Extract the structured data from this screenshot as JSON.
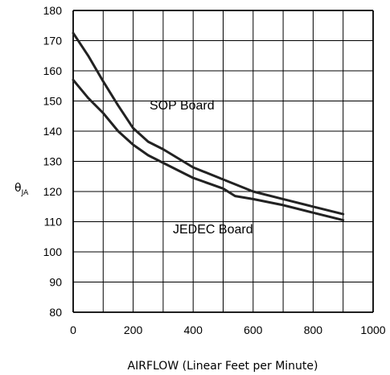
{
  "chart_data": {
    "type": "line",
    "title": "",
    "xlabel": "AIRFLOW (Linear Feet per Minute)",
    "ylabel_main": "θ",
    "ylabel_sub": "JA",
    "xlim": [
      0,
      1000
    ],
    "ylim": [
      80,
      180
    ],
    "xticks": [
      0,
      200,
      400,
      600,
      800,
      1000
    ],
    "yticks": [
      80,
      90,
      100,
      110,
      120,
      130,
      140,
      150,
      160,
      170,
      180
    ],
    "grid_x_step": 100,
    "grid_y_step": 10,
    "grid": true,
    "series": [
      {
        "name": "SOP Board",
        "color": "#222222",
        "x": [
          0,
          50,
          100,
          150,
          200,
          250,
          300,
          400,
          500,
          600,
          700,
          800,
          900
        ],
        "y": [
          172.5,
          165,
          156.5,
          148.5,
          141,
          136.5,
          134,
          128,
          124,
          120,
          117.5,
          115,
          112.5
        ]
      },
      {
        "name": "JEDEC Board",
        "color": "#222222",
        "x": [
          0,
          50,
          100,
          150,
          200,
          250,
          300,
          400,
          500,
          540,
          600,
          700,
          800,
          900
        ],
        "y": [
          157,
          151,
          146,
          140,
          135.5,
          132,
          129.5,
          124.5,
          121,
          118.5,
          117.5,
          115.5,
          113,
          110.5
        ]
      }
    ]
  }
}
